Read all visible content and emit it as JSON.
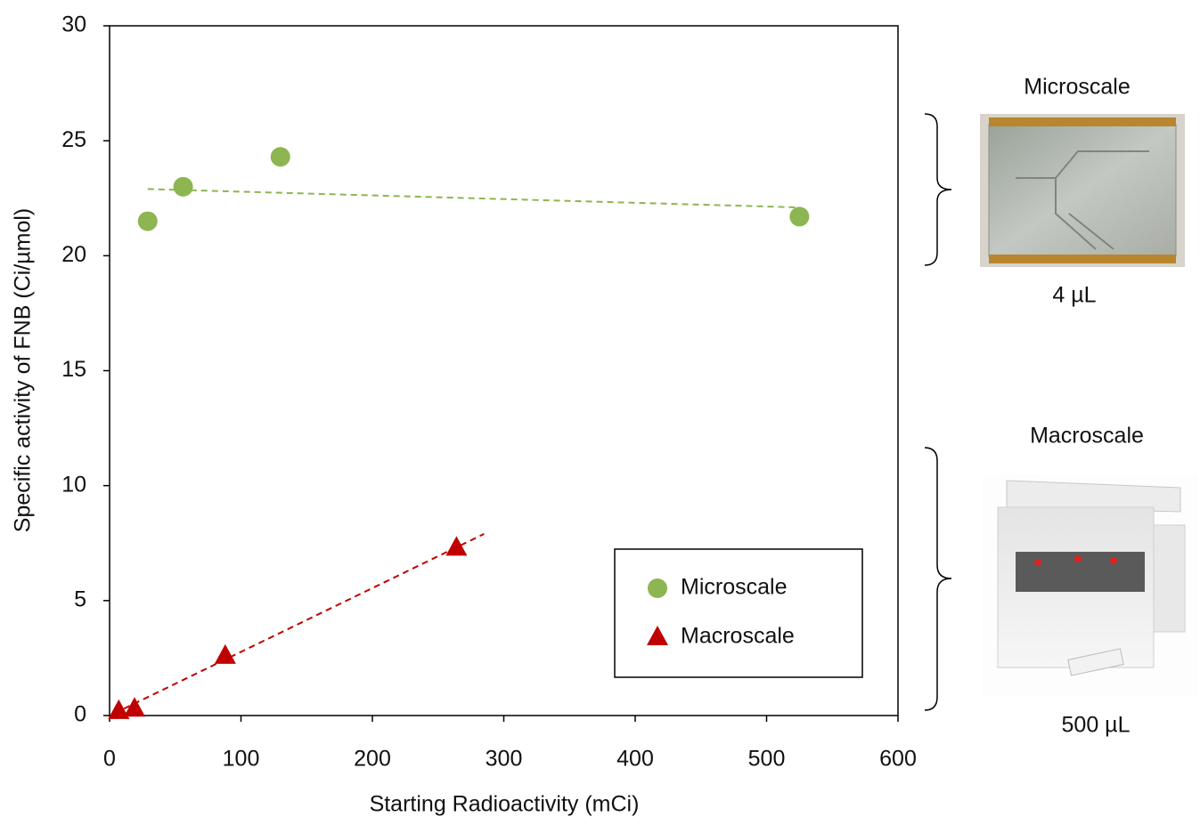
{
  "chart_data": {
    "type": "scatter",
    "xlabel": "Starting Radioactivity (mCi)",
    "ylabel": "Specific activity of FNB (Ci/µmol)",
    "xlim": [
      0,
      600
    ],
    "xticks": [
      0,
      100,
      200,
      300,
      400,
      500,
      600
    ],
    "ylim": [
      0,
      30
    ],
    "yticks": [
      0,
      5,
      10,
      15,
      20,
      25,
      30
    ],
    "legend": "lower right",
    "series": [
      {
        "name": "Microscale",
        "color": "#8db551",
        "marker": "circle",
        "x": [
          29,
          56,
          130,
          525
        ],
        "values": [
          21.5,
          23.0,
          24.3,
          21.7
        ],
        "trendline": {
          "x": [
            29,
            525
          ],
          "values": [
            22.9,
            22.1
          ]
        }
      },
      {
        "name": "Macroscale",
        "color": "#c00000",
        "marker": "triangle",
        "x": [
          7,
          19,
          88,
          264
        ],
        "values": [
          0.2,
          0.3,
          2.6,
          7.3
        ],
        "trendline": {
          "x": [
            11,
            285
          ],
          "values": [
            0.3,
            7.9
          ]
        }
      }
    ],
    "annotations": [
      "Microscale",
      "4 µL",
      "Macroscale",
      "500 µL"
    ]
  }
}
